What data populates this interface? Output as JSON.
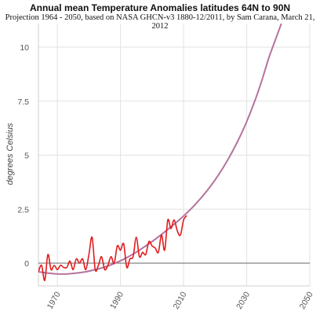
{
  "chart_data": {
    "type": "line",
    "title": "Annual mean Temperature Anomalies latitudes 64N to 90N",
    "subtitle": "Projection 1964 - 2050, based on NASA GHCN-v3 1880-12/2011, by Sam Carana, March 21, 2012",
    "ylabel": "degrees Celsius",
    "xlabel": "",
    "xlim": [
      1964,
      2050
    ],
    "ylim": [
      -1,
      11
    ],
    "x_ticks": [
      "1970",
      "1990",
      "2010",
      "2030",
      "2050"
    ],
    "y_ticks": [
      "0",
      "2.5",
      "5",
      "7.5",
      "10"
    ],
    "grid": true,
    "series": [
      {
        "color": "#e41a1c",
        "x": [
          1964,
          1965,
          1966,
          1967,
          1968,
          1969,
          1970,
          1971,
          1972,
          1973,
          1974,
          1975,
          1976,
          1977,
          1978,
          1979,
          1980,
          1981,
          1982,
          1983,
          1984,
          1985,
          1986,
          1987,
          1988,
          1989,
          1990,
          1991,
          1992,
          1993,
          1994,
          1995,
          1996,
          1997,
          1998,
          1999,
          2000,
          2001,
          2002,
          2003,
          2004,
          2005,
          2006,
          2007,
          2008,
          2009,
          2010,
          2011
        ],
        "y": [
          -0.4,
          -0.1,
          -0.8,
          0.4,
          -0.3,
          -0.1,
          -0.3,
          -0.1,
          -0.2,
          -0.2,
          0.1,
          -0.3,
          0.2,
          0.0,
          0.2,
          -0.3,
          0.4,
          1.2,
          -0.3,
          -0.1,
          0.3,
          -0.3,
          -0.1,
          0.3,
          0.0,
          0.8,
          0.6,
          0.9,
          -0.2,
          0.2,
          0.3,
          1.2,
          0.3,
          0.5,
          0.4,
          1.0,
          0.8,
          0.7,
          0.5,
          1.3,
          0.6,
          2.0,
          1.6,
          2.0,
          1.5,
          1.3,
          2.0,
          2.2
        ]
      },
      {
        "color": "#b5739d",
        "x": [
          1964,
          1967,
          1970,
          1973,
          1976,
          1979,
          1982,
          1985,
          1988,
          1991,
          1994,
          1997,
          2000,
          2003,
          2006,
          2009,
          2012,
          2015,
          2018,
          2021,
          2024,
          2027,
          2030,
          2033,
          2035,
          2037,
          2039,
          2040,
          2041,
          2042,
          2043,
          2043.6
        ],
        "y": [
          -0.4,
          -0.46,
          -0.5,
          -0.5,
          -0.46,
          -0.4,
          -0.3,
          -0.18,
          -0.02,
          0.18,
          0.42,
          0.7,
          1.0,
          1.33,
          1.68,
          2.05,
          2.46,
          2.93,
          3.46,
          4.07,
          4.78,
          5.6,
          6.55,
          7.68,
          8.55,
          9.5,
          10.3,
          10.7,
          11.1,
          11.5,
          11.95,
          12.2
        ]
      }
    ]
  }
}
